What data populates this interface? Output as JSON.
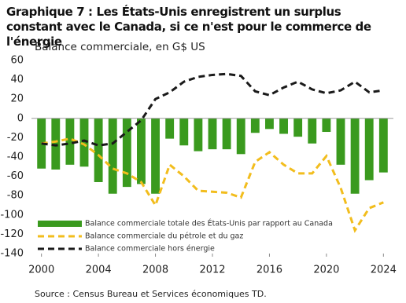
{
  "chart_data": {
    "type": "bar",
    "title": "Graphique 7 : Les États-Unis enregistrent un surplus constant avec le Canada, si ce n'est pour le commerce de l'énergie",
    "subtitle": "Balance commerciale, en G$ US",
    "source": "Source : Census Bureau et Services économiques TD.",
    "x": [
      2000,
      2001,
      2002,
      2003,
      2004,
      2005,
      2006,
      2007,
      2008,
      2009,
      2010,
      2011,
      2012,
      2013,
      2014,
      2015,
      2016,
      2017,
      2018,
      2019,
      2020,
      2021,
      2022,
      2023,
      2024
    ],
    "series": [
      {
        "name": "Balance commerciale totale des États-Unis par rapport au Canada",
        "type": "bar",
        "color": "#3a9a1e",
        "values": [
          -52,
          -53,
          -48,
          -50,
          -66,
          -78,
          -71,
          -68,
          -78,
          -21,
          -28,
          -34,
          -32,
          -32,
          -37,
          -15,
          -11,
          -16,
          -19,
          -26,
          -14,
          -48,
          -78,
          -64,
          -56
        ]
      },
      {
        "name": "Balance commerciale du pétrole et du gaz",
        "type": "line",
        "dash": true,
        "color": "#f2bd1d",
        "values": [
          -26,
          -24,
          -21,
          -27,
          -38,
          -52,
          -57,
          -66,
          -90,
          -48,
          -60,
          -75,
          -76,
          -77,
          -82,
          -45,
          -35,
          -48,
          -57,
          -57,
          -39,
          -72,
          -116,
          -93,
          -87
        ]
      },
      {
        "name": "Balance commerciale hors énergie",
        "type": "line",
        "dash": true,
        "color": "#1a1a1a",
        "values": [
          -26,
          -28,
          -26,
          -23,
          -28,
          -26,
          -14,
          -2,
          20,
          27,
          38,
          43,
          45,
          46,
          44,
          28,
          24,
          32,
          38,
          30,
          26,
          29,
          38,
          27,
          29
        ]
      }
    ],
    "xlim": [
      1999.3,
      2024.7
    ],
    "xticks": [
      2000,
      2004,
      2008,
      2012,
      2016,
      2020,
      2024
    ],
    "ylim": [
      -140,
      60
    ],
    "yticks": [
      -140,
      -120,
      -100,
      -80,
      -60,
      -40,
      -20,
      0,
      20,
      40,
      60
    ]
  }
}
